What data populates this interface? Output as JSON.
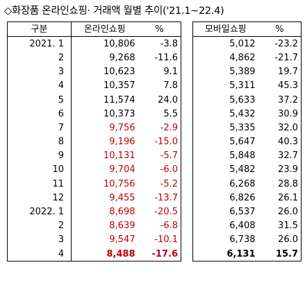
{
  "title": "◇화장품 온라인쇼핑· 거래액 월별 추이('21.1~22.4)",
  "headers": [
    "구분",
    "온라인쇼핑",
    "%",
    "모바일쇼핑",
    "%"
  ],
  "rows": [
    {
      "period": "2021.  1",
      "online": "10,806",
      "online_pct": "-3.8",
      "mobile": "5,012",
      "mobile_pct": "-23.2",
      "red": false,
      "bold": false
    },
    {
      "period": "2",
      "online": "9,268",
      "online_pct": "-11.6",
      "mobile": "4,862",
      "mobile_pct": "-21.7",
      "red": false,
      "bold": false
    },
    {
      "period": "3",
      "online": "10,623",
      "online_pct": "9.1",
      "mobile": "5,389",
      "mobile_pct": "19.7",
      "red": false,
      "bold": false
    },
    {
      "period": "4",
      "online": "10,357",
      "online_pct": "7.8",
      "mobile": "5,311",
      "mobile_pct": "45.3",
      "red": false,
      "bold": false
    },
    {
      "period": "5",
      "online": "11,574",
      "online_pct": "24.0",
      "mobile": "5,633",
      "mobile_pct": "37.2",
      "red": false,
      "bold": false
    },
    {
      "period": "6",
      "online": "10,373",
      "online_pct": "5.5",
      "mobile": "5,432",
      "mobile_pct": "30.9",
      "red": false,
      "bold": false
    },
    {
      "period": "7",
      "online": "9,756",
      "online_pct": "-2.9",
      "mobile": "5,335",
      "mobile_pct": "32.0",
      "red": true,
      "bold": false
    },
    {
      "period": "8",
      "online": "9,196",
      "online_pct": "-15.0",
      "mobile": "5,647",
      "mobile_pct": "40.3",
      "red": true,
      "bold": false
    },
    {
      "period": "9",
      "online": "10,131",
      "online_pct": "-5.7",
      "mobile": "5,848",
      "mobile_pct": "32.7",
      "red": true,
      "bold": false
    },
    {
      "period": "10",
      "online": "9,704",
      "online_pct": "-6.0",
      "mobile": "5,482",
      "mobile_pct": "23.9",
      "red": true,
      "bold": false
    },
    {
      "period": "11",
      "online": "10,756",
      "online_pct": "-5.2",
      "mobile": "6,268",
      "mobile_pct": "28.8",
      "red": true,
      "bold": false
    },
    {
      "period": "12",
      "online": "9,455",
      "online_pct": "-13.7",
      "mobile": "6,826",
      "mobile_pct": "26.1",
      "red": true,
      "bold": false
    },
    {
      "period": "2022.  1",
      "online": "8,698",
      "online_pct": "-20.5",
      "mobile": "6,537",
      "mobile_pct": "26.0",
      "red": true,
      "bold": false
    },
    {
      "period": "2",
      "online": "8,639",
      "online_pct": "-6.8",
      "mobile": "6,408",
      "mobile_pct": "31.5",
      "red": true,
      "bold": false
    },
    {
      "period": "3",
      "online": "9,547",
      "online_pct": "-10.1",
      "mobile": "6,738",
      "mobile_pct": "26.0",
      "red": true,
      "bold": false
    },
    {
      "period": "4",
      "online": "8,488",
      "online_pct": "-17.6",
      "mobile": "6,131",
      "mobile_pct": "15.7",
      "red": true,
      "bold": true
    }
  ],
  "colors": {
    "negative": "#c00000",
    "text": "#000000"
  }
}
